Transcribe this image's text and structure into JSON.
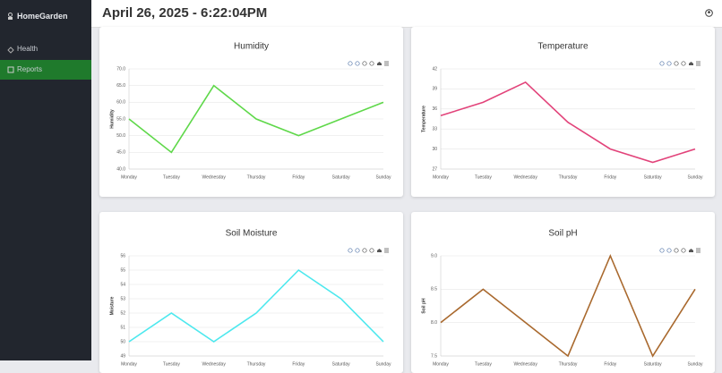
{
  "sidebar": {
    "brand": "HomeGarden",
    "items": [
      "Health",
      "Reports"
    ]
  },
  "header": {
    "title": "April 26, 2025 - 6:22:04PM"
  },
  "chart_data": [
    {
      "type": "line",
      "title": "Humidity",
      "y_label": "Humidity",
      "categories": [
        "Monday",
        "Tuesday",
        "Wednesday",
        "Thursday",
        "Friday",
        "Saturday",
        "Sunday"
      ],
      "series": [
        {
          "name": "Humidity",
          "color": "#5fd84a",
          "values": [
            55,
            45,
            65,
            55,
            50,
            55,
            60
          ]
        }
      ],
      "ylim": [
        40,
        70
      ],
      "yticks": [
        {
          "value": 40,
          "label": "40.0"
        },
        {
          "value": 45,
          "label": "45.0"
        },
        {
          "value": 50,
          "label": "50.0"
        },
        {
          "value": 55,
          "label": "55.0"
        },
        {
          "value": 60,
          "label": "60.0"
        },
        {
          "value": 65,
          "label": "65.0"
        },
        {
          "value": 70,
          "label": "70.0"
        }
      ],
      "grid": true
    },
    {
      "type": "line",
      "title": "Temperature",
      "y_label": "Temperature",
      "categories": [
        "Monday",
        "Tuesday",
        "Wednesday",
        "Thursday",
        "Friday",
        "Saturday",
        "Sunday"
      ],
      "series": [
        {
          "name": "Temperature",
          "color": "#e2437a",
          "values": [
            35,
            37,
            40,
            34,
            30,
            28,
            30
          ]
        }
      ],
      "ylim": [
        27,
        42
      ],
      "yticks": [
        27,
        30,
        33,
        36,
        39,
        42
      ],
      "grid": true
    },
    {
      "type": "line",
      "title": "Soil Moisture",
      "y_label": "Moisture",
      "categories": [
        "Monday",
        "Tuesday",
        "Wednesday",
        "Thursday",
        "Friday",
        "Saturday",
        "Sunday"
      ],
      "series": [
        {
          "name": "Moisture",
          "color": "#4de8ee",
          "values": [
            50,
            52,
            50,
            52,
            55,
            53,
            50
          ]
        }
      ],
      "ylim": [
        49,
        56
      ],
      "yticks": [
        49,
        50,
        51,
        52,
        53,
        54,
        55,
        56
      ],
      "grid": true
    },
    {
      "type": "line",
      "title": "Soil pH",
      "y_label": "Soil pH",
      "categories": [
        "Monday",
        "Tuesday",
        "Wednesday",
        "Thursday",
        "Friday",
        "Saturday",
        "Sunday"
      ],
      "series": [
        {
          "name": "Soil pH",
          "color": "#a9692e",
          "values": [
            8.0,
            8.5,
            8.0,
            7.5,
            9.0,
            7.5,
            8.5
          ]
        }
      ],
      "ylim": [
        7.5,
        9.0
      ],
      "yticks": [
        {
          "value": 7.5,
          "label": "7.5"
        },
        {
          "value": 8.0,
          "label": "8.0"
        },
        {
          "value": 8.5,
          "label": "8.5"
        },
        {
          "value": 9.0,
          "label": "9.0"
        }
      ],
      "grid": true
    }
  ]
}
